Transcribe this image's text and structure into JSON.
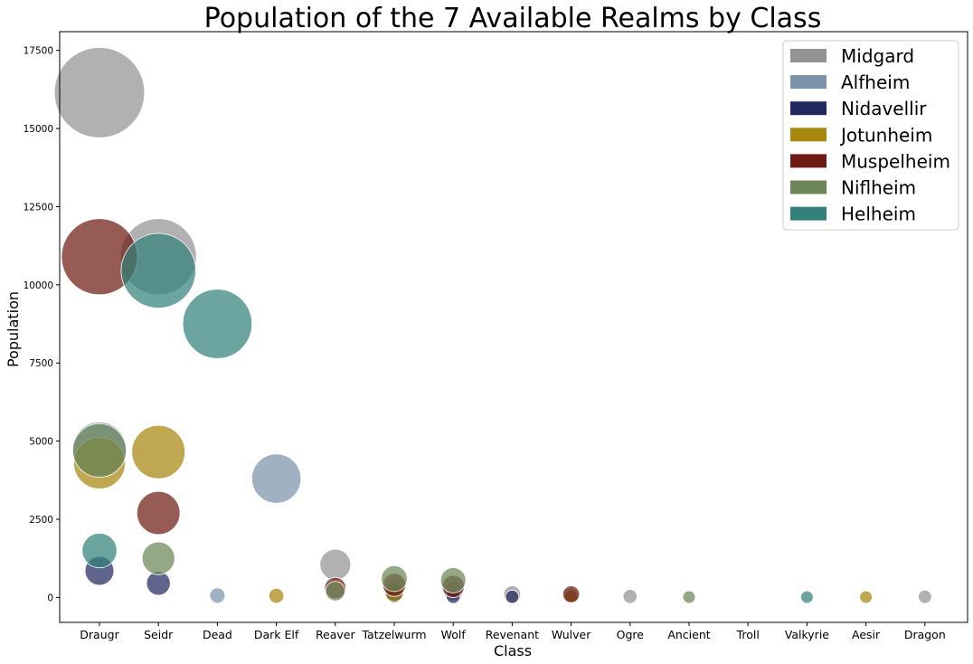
{
  "chart_data": {
    "type": "scatter",
    "title": "Population of the 7 Available Realms by Class",
    "xlabel": "Class",
    "ylabel": "Population",
    "categories": [
      "Draugr",
      "Seidr",
      "Dead",
      "Dark Elf",
      "Reaver",
      "Tatzelwurm",
      "Wolf",
      "Revenant",
      "Wulver",
      "Ogre",
      "Ancient",
      "Troll",
      "Valkyrie",
      "Aesir",
      "Dragon"
    ],
    "ylim": [
      -800,
      18100
    ],
    "yticks": [
      0,
      2500,
      5000,
      7500,
      10000,
      12500,
      15000,
      17500
    ],
    "ytick_labels": [
      "0",
      "2500",
      "5000",
      "7500",
      "10000",
      "12500",
      "15000",
      "17500"
    ],
    "bubble_size": "proportional to population",
    "grid": false,
    "legend_position": "top-right",
    "series": [
      {
        "name": "Midgard",
        "color": "#939393",
        "values": [
          16150,
          10900,
          0,
          0,
          1050,
          250,
          200,
          100,
          50,
          30,
          0,
          0,
          0,
          0,
          20
        ]
      },
      {
        "name": "Alfheim",
        "color": "#7b93ab",
        "values": [
          4750,
          0,
          60,
          3800,
          0,
          200,
          0,
          0,
          0,
          0,
          0,
          0,
          0,
          0,
          0
        ]
      },
      {
        "name": "Nidavellir",
        "color": "#212a5e",
        "values": [
          850,
          450,
          0,
          0,
          0,
          80,
          30,
          20,
          0,
          0,
          0,
          0,
          0,
          0,
          0
        ]
      },
      {
        "name": "Jotunheim",
        "color": "#a8870f",
        "values": [
          4300,
          4650,
          0,
          50,
          0,
          150,
          0,
          0,
          20,
          0,
          0,
          0,
          0,
          10,
          0
        ]
      },
      {
        "name": "Muspelheim",
        "color": "#6e1c13",
        "values": [
          10900,
          2700,
          0,
          0,
          300,
          400,
          350,
          0,
          100,
          0,
          0,
          0,
          0,
          0,
          0
        ]
      },
      {
        "name": "Niflheim",
        "color": "#6b8757",
        "values": [
          4700,
          1250,
          0,
          0,
          200,
          600,
          550,
          0,
          0,
          0,
          10,
          0,
          0,
          0,
          0
        ]
      },
      {
        "name": "Helheim",
        "color": "#33817a",
        "values": [
          1500,
          10450,
          8750,
          0,
          0,
          0,
          0,
          0,
          0,
          0,
          0,
          0,
          10,
          0,
          0
        ]
      }
    ]
  }
}
